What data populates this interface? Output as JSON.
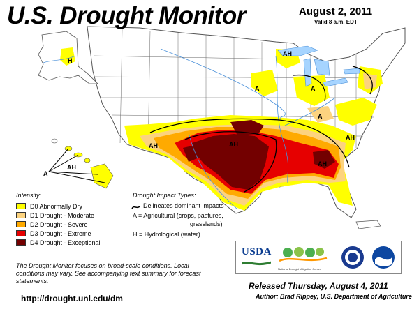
{
  "header": {
    "title": "U.S. Drought Monitor",
    "date": "August 2, 2011",
    "valid": "Valid 8 a.m. EDT"
  },
  "colors": {
    "d0": "#ffff00",
    "d1": "#fcd37f",
    "d2": "#ffaa00",
    "d3": "#e60000",
    "d4": "#730000",
    "water": "#a6d4ff",
    "land": "#ffffff",
    "border": "#555555"
  },
  "legend": {
    "intensity_title": "Intensity:",
    "intensity": [
      {
        "label": "D0 Abnormally Dry",
        "color": "#ffff00"
      },
      {
        "label": "D1 Drought - Moderate",
        "color": "#fcd37f"
      },
      {
        "label": "D2 Drought - Severe",
        "color": "#ffaa00"
      },
      {
        "label": "D3 Drought - Extreme",
        "color": "#e60000"
      },
      {
        "label": "D4 Drought - Exceptional",
        "color": "#730000"
      }
    ],
    "impact_title": "Drought Impact Types:",
    "impacts": [
      "Delineates dominant impacts",
      "A = Agricultural (crops, pastures,",
      "grasslands)",
      "H = Hydrological (water)"
    ]
  },
  "map_labels": {
    "alaska": "H",
    "hawaii_a": "A",
    "hawaii_ah": "AH",
    "texas": "AH",
    "midwest": "A",
    "northeast": "AH",
    "southeast": "AH",
    "southwest": "AH",
    "plains": "A",
    "kentucky": "A",
    "carolinas": "AH"
  },
  "note": "The Drought Monitor focuses on broad-scale conditions. Local conditions may vary. See accompanying text summary for forecast statements.",
  "url": "http://drought.unl.edu/dm",
  "footer": {
    "released": "Released Thursday, August 4, 2011",
    "author": "Author: Brad Rippey, U.S. Department of Agriculture"
  },
  "logos": {
    "usda": "USDA",
    "ndmc": "National Drought Mitigation Center"
  }
}
